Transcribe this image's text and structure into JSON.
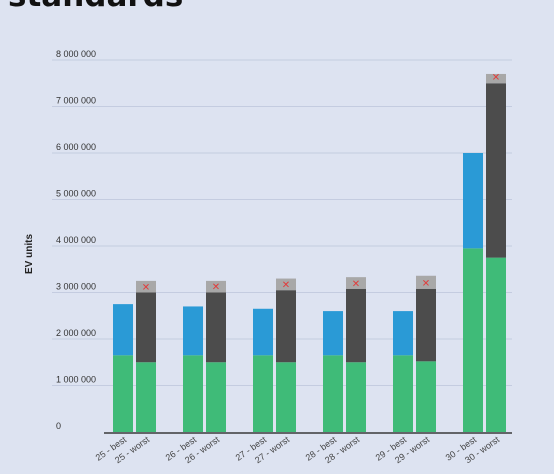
{
  "chart_data": {
    "type": "bar",
    "title": "standards",
    "ylabel": "EV units",
    "xlabel": "",
    "ylim": [
      0,
      8000000
    ],
    "yticks": [
      {
        "value": 0,
        "label": "0"
      },
      {
        "value": 1000000,
        "label": "1 000 000"
      },
      {
        "value": 2000000,
        "label": "2 000 000"
      },
      {
        "value": 3000000,
        "label": "3 000 000"
      },
      {
        "value": 4000000,
        "label": "4 000 000"
      },
      {
        "value": 5000000,
        "label": "5 000 000"
      },
      {
        "value": 6000000,
        "label": "6 000 000"
      },
      {
        "value": 7000000,
        "label": "7 000 000"
      },
      {
        "value": 8000000,
        "label": "8 000 000"
      }
    ],
    "categories": [
      "25 - best",
      "25 - worst",
      "26 - best",
      "26 - worst",
      "27 - best",
      "27 - worst",
      "28 - best",
      "28 - worst",
      "29 - best",
      "29 - worst",
      "30 - best",
      "30 - worst"
    ],
    "stack_order": [
      "green",
      "blue",
      "dark",
      "gray"
    ],
    "colors": {
      "green": "#3fbb78",
      "blue": "#2a9ad6",
      "dark": "#4c4c4c",
      "gray": "#a8a8a8",
      "marker": "#e23b3b",
      "grid": "#c4cce0",
      "axis": "#3a3a3a"
    },
    "series": [
      {
        "color": "green",
        "values": [
          1650000,
          1500000,
          1650000,
          1500000,
          1650000,
          1500000,
          1650000,
          1500000,
          1650000,
          1520000,
          3950000,
          3750000
        ]
      },
      {
        "color": "blue",
        "values": [
          1100000,
          0,
          1050000,
          0,
          1000000,
          0,
          950000,
          0,
          950000,
          0,
          2050000,
          0
        ]
      },
      {
        "color": "dark",
        "values": [
          0,
          1500000,
          0,
          1500000,
          0,
          1550000,
          0,
          1580000,
          0,
          1560000,
          0,
          3750000
        ]
      },
      {
        "color": "gray",
        "values": [
          0,
          250000,
          0,
          250000,
          0,
          250000,
          0,
          250000,
          0,
          280000,
          0,
          200000
        ]
      }
    ],
    "markers": [
      {
        "category_index": 1,
        "value": 3130000,
        "symbol": "✕"
      },
      {
        "category_index": 3,
        "value": 3140000,
        "symbol": "✕"
      },
      {
        "category_index": 5,
        "value": 3180000,
        "symbol": "✕"
      },
      {
        "category_index": 7,
        "value": 3200000,
        "symbol": "✕"
      },
      {
        "category_index": 9,
        "value": 3220000,
        "symbol": "✕"
      },
      {
        "category_index": 11,
        "value": 7650000,
        "symbol": "✕"
      }
    ],
    "legend": "none",
    "grid": true
  }
}
